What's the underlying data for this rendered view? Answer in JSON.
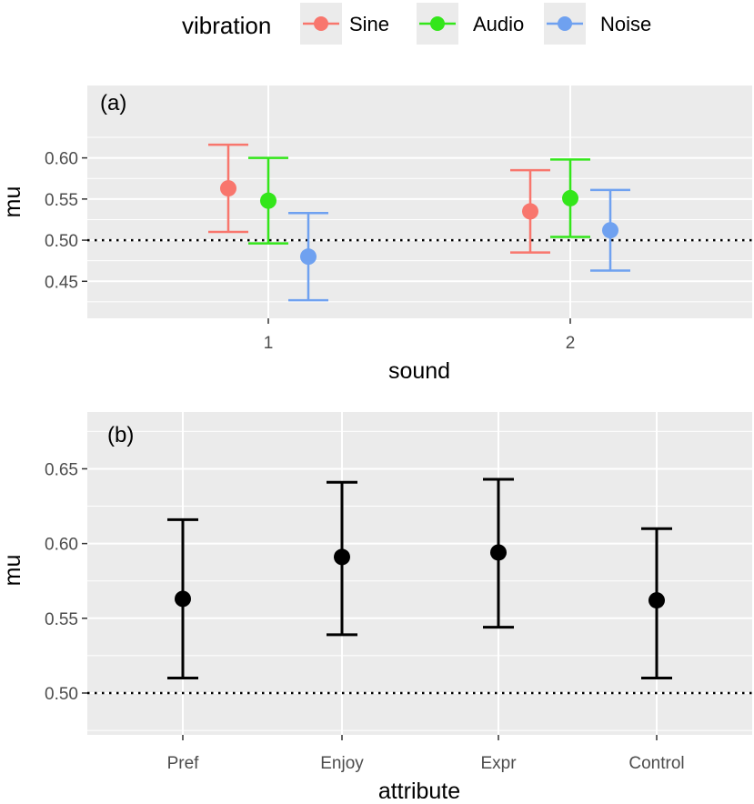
{
  "legend": {
    "title": "vibration",
    "entries": [
      {
        "label": "Sine",
        "color": "#F8766D"
      },
      {
        "label": "Audio",
        "color": "#33E61A"
      },
      {
        "label": "Noise",
        "color": "#6FA1F0"
      }
    ]
  },
  "chart_data": [
    {
      "type": "scatter",
      "panel_label": "(a)",
      "xlabel": "sound",
      "ylabel": "mu",
      "categories": [
        "1",
        "2"
      ],
      "ylim": [
        0.405,
        0.688
      ],
      "yticks": [
        0.45,
        0.5,
        0.55,
        0.6
      ],
      "ytick_labels": [
        "0.45",
        "0.50",
        "0.55",
        "0.60"
      ],
      "reference_line": 0.5,
      "grid": true,
      "legend_position": "top",
      "series": [
        {
          "name": "Sine",
          "color": "#F8766D",
          "points": [
            {
              "x": "1",
              "y": 0.563,
              "low": 0.51,
              "high": 0.616
            },
            {
              "x": "2",
              "y": 0.535,
              "low": 0.485,
              "high": 0.585
            }
          ]
        },
        {
          "name": "Audio",
          "color": "#33E61A",
          "points": [
            {
              "x": "1",
              "y": 0.548,
              "low": 0.496,
              "high": 0.6
            },
            {
              "x": "2",
              "y": 0.551,
              "low": 0.504,
              "high": 0.598
            }
          ]
        },
        {
          "name": "Noise",
          "color": "#6FA1F0",
          "points": [
            {
              "x": "1",
              "y": 0.48,
              "low": 0.427,
              "high": 0.533
            },
            {
              "x": "2",
              "y": 0.512,
              "low": 0.463,
              "high": 0.561
            }
          ]
        }
      ]
    },
    {
      "type": "scatter",
      "panel_label": "(b)",
      "xlabel": "attribute",
      "ylabel": "mu",
      "categories": [
        "Pref",
        "Enjoy",
        "Expr",
        "Control"
      ],
      "ylim": [
        0.472,
        0.688
      ],
      "yticks": [
        0.5,
        0.55,
        0.6,
        0.65
      ],
      "ytick_labels": [
        "0.50",
        "0.55",
        "0.60",
        "0.65"
      ],
      "reference_line": 0.5,
      "grid": true,
      "series": [
        {
          "color": "#000000",
          "points": [
            {
              "x": "Pref",
              "y": 0.563,
              "low": 0.51,
              "high": 0.616
            },
            {
              "x": "Enjoy",
              "y": 0.591,
              "low": 0.539,
              "high": 0.641
            },
            {
              "x": "Expr",
              "y": 0.594,
              "low": 0.544,
              "high": 0.643
            },
            {
              "x": "Control",
              "y": 0.562,
              "low": 0.51,
              "high": 0.61
            }
          ]
        }
      ]
    }
  ]
}
